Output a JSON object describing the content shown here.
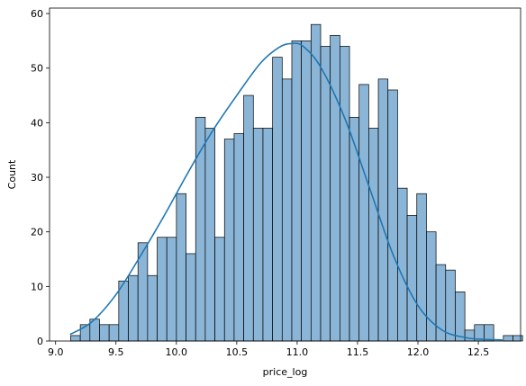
{
  "chart_data": {
    "type": "bar",
    "subtype": "histogram",
    "xlabel": "price_log",
    "ylabel": "Count",
    "xlim": [
      8.95,
      12.85
    ],
    "ylim": [
      0,
      61
    ],
    "x_ticks": [
      9.0,
      9.5,
      10.0,
      10.5,
      11.0,
      11.5,
      12.0,
      12.5
    ],
    "x_tick_labels": [
      "9.0",
      "9.5",
      "10.0",
      "10.5",
      "11.0",
      "11.5",
      "12.0",
      "12.5"
    ],
    "y_ticks": [
      0,
      10,
      20,
      30,
      40,
      50,
      60
    ],
    "y_tick_labels": [
      "0",
      "10",
      "20",
      "30",
      "40",
      "50",
      "60"
    ],
    "bin_start": 9.125,
    "bin_width": 0.0796,
    "counts": [
      1,
      3,
      4,
      3,
      3,
      11,
      12,
      18,
      12,
      19,
      19,
      27,
      16,
      41,
      39,
      19,
      37,
      38,
      45,
      39,
      39,
      52,
      48,
      55,
      55,
      58,
      54,
      56,
      54,
      41,
      47,
      39,
      48,
      46,
      28,
      23,
      27,
      20,
      14,
      13,
      9,
      2,
      3,
      3,
      0,
      1,
      1,
      0,
      1,
      1
    ],
    "kde": {
      "x": [
        9.12,
        9.3,
        9.5,
        9.7,
        9.9,
        10.1,
        10.3,
        10.5,
        10.7,
        10.85,
        10.95,
        11.05,
        11.2,
        11.4,
        11.6,
        11.8,
        12.0,
        12.2,
        12.4,
        12.55,
        12.7
      ],
      "y": [
        1.2,
        3.5,
        8.5,
        15.5,
        23,
        31,
        38.5,
        45,
        51,
        53.8,
        54.5,
        54,
        50,
        40.5,
        28,
        15.5,
        6.5,
        2,
        0.6,
        0.3,
        0.2
      ]
    },
    "bar_fill": "#8ab5d6",
    "bar_edge": "#000000",
    "kde_color": "#1f77b4",
    "grid": false,
    "legend": "none"
  }
}
